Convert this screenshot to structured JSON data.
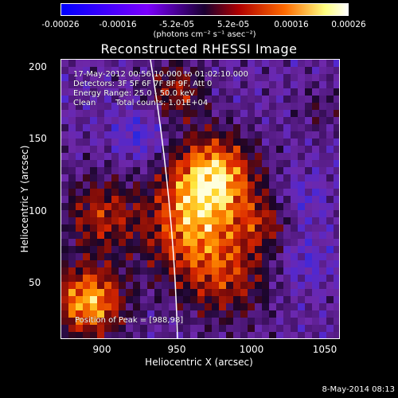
{
  "colorbar": {
    "ticks": [
      "-0.00026",
      "-0.00016",
      "-5.2e-05",
      "5.2e-05",
      "0.00016",
      "0.00026"
    ],
    "units": "(photons cm⁻² s⁻¹ asec⁻²)"
  },
  "plot": {
    "title": "Reconstructed RHESSI Image",
    "annotations": {
      "time_range": "17-May-2012 00:56:10.000 to 01:02:10.000",
      "detectors": "Detectors: 3F 5F 6F 7F 8F 9F, Att 0",
      "energy_range": "Energy Range: 25.0 - 50.0 keV",
      "clean": "Clean",
      "total_counts": "Total counts: 1.01E+04",
      "peak": "Position of Peak = [988,98]"
    },
    "x_axis": {
      "label": "Heliocentric X (arcsec)",
      "ticks": [
        "900",
        "950",
        "1000",
        "1050"
      ]
    },
    "y_axis": {
      "label": "Heliocentric Y (arcsec)",
      "ticks": [
        "200",
        "150",
        "100",
        "50"
      ]
    }
  },
  "timestamp": "8-May-2014 08:13"
}
